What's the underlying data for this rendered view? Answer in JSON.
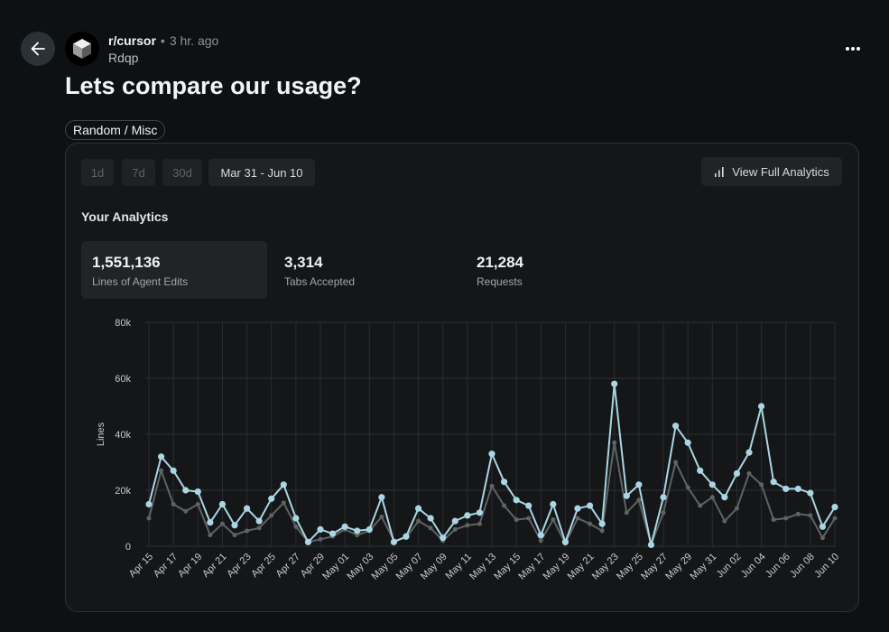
{
  "post": {
    "subreddit": "r/cursor",
    "separator": "•",
    "time": "3 hr. ago",
    "author": "Rdqp",
    "title": "Lets compare our usage?",
    "flair": "Random / Misc"
  },
  "icons": {
    "back": "arrow-left-icon",
    "more": "more-horizontal-icon",
    "avatar": "cube-icon",
    "analytics": "bar-chart-icon"
  },
  "dashboard": {
    "ranges": [
      "1d",
      "7d",
      "30d",
      "Mar 31 - Jun 10"
    ],
    "active_range": "Mar 31 - Jun 10",
    "view_analytics_label": "View Full Analytics",
    "section_title": "Your Analytics",
    "stats": [
      {
        "value": "1,551,136",
        "label": "Lines of Agent Edits"
      },
      {
        "value": "3,314",
        "label": "Tabs Accepted"
      },
      {
        "value": "21,284",
        "label": "Requests"
      }
    ]
  },
  "chart_data": {
    "type": "line",
    "title": "",
    "ylabel": "Lines",
    "xlabel": "",
    "ylim": [
      0,
      80000
    ],
    "yticks": [
      0,
      20000,
      40000,
      60000,
      80000
    ],
    "ytick_labels": [
      "0",
      "20k",
      "40k",
      "60k",
      "80k"
    ],
    "x": [
      "Apr 15",
      "Apr 16",
      "Apr 17",
      "Apr 18",
      "Apr 19",
      "Apr 20",
      "Apr 21",
      "Apr 22",
      "Apr 23",
      "Apr 24",
      "Apr 25",
      "Apr 26",
      "Apr 27",
      "Apr 28",
      "Apr 29",
      "Apr 30",
      "May 01",
      "May 02",
      "May 03",
      "May 04",
      "May 05",
      "May 06",
      "May 07",
      "May 08",
      "May 09",
      "May 10",
      "May 11",
      "May 12",
      "May 13",
      "May 14",
      "May 15",
      "May 16",
      "May 17",
      "May 18",
      "May 19",
      "May 20",
      "May 21",
      "May 22",
      "May 23",
      "May 24",
      "May 25",
      "May 26",
      "May 27",
      "May 28",
      "May 29",
      "May 30",
      "May 31",
      "Jun 01",
      "Jun 02",
      "Jun 03",
      "Jun 04",
      "Jun 05",
      "Jun 06",
      "Jun 07",
      "Jun 08",
      "Jun 09",
      "Jun 10"
    ],
    "x_tick_labels": [
      "Apr 15",
      "Apr 17",
      "Apr 19",
      "Apr 21",
      "Apr 23",
      "Apr 25",
      "Apr 27",
      "Apr 29",
      "May 01",
      "May 03",
      "May 05",
      "May 07",
      "May 09",
      "May 11",
      "May 13",
      "May 15",
      "May 17",
      "May 19",
      "May 21",
      "May 23",
      "May 25",
      "May 27",
      "May 29",
      "May 31",
      "Jun 02",
      "Jun 04",
      "Jun 06",
      "Jun 08",
      "Jun 10"
    ],
    "series": [
      {
        "name": "Lines",
        "color": "#a9d6e3",
        "values": [
          15000,
          32000,
          27000,
          20000,
          19500,
          8500,
          15000,
          7500,
          13500,
          9000,
          17000,
          22000,
          10000,
          1500,
          6000,
          4500,
          7000,
          5500,
          6000,
          17500,
          1500,
          3500,
          13500,
          10000,
          3000,
          9000,
          11000,
          12000,
          33000,
          23000,
          16500,
          14500,
          4000,
          15000,
          1500,
          13500,
          14500,
          8000,
          58000,
          18000,
          22000,
          500,
          17500,
          43000,
          37000,
          27000,
          22000,
          17500,
          26000,
          33500,
          50000,
          23000,
          20500,
          20500,
          19000,
          7000,
          14000
        ]
      },
      {
        "name": "Accepted",
        "color": "#5f6366",
        "values": [
          10000,
          27000,
          15000,
          12500,
          15000,
          4000,
          8000,
          4000,
          5500,
          6500,
          11000,
          15500,
          7000,
          1500,
          2500,
          3500,
          6000,
          4000,
          5500,
          10500,
          2000,
          3000,
          9000,
          6500,
          2000,
          6000,
          7500,
          8000,
          21500,
          14500,
          9500,
          10000,
          2000,
          9500,
          1000,
          10000,
          8000,
          5500,
          37000,
          12000,
          16500,
          500,
          12000,
          30000,
          21000,
          14500,
          17500,
          9000,
          13500,
          26000,
          22000,
          9500,
          10000,
          11500,
          11000,
          3000,
          10000
        ]
      }
    ]
  }
}
